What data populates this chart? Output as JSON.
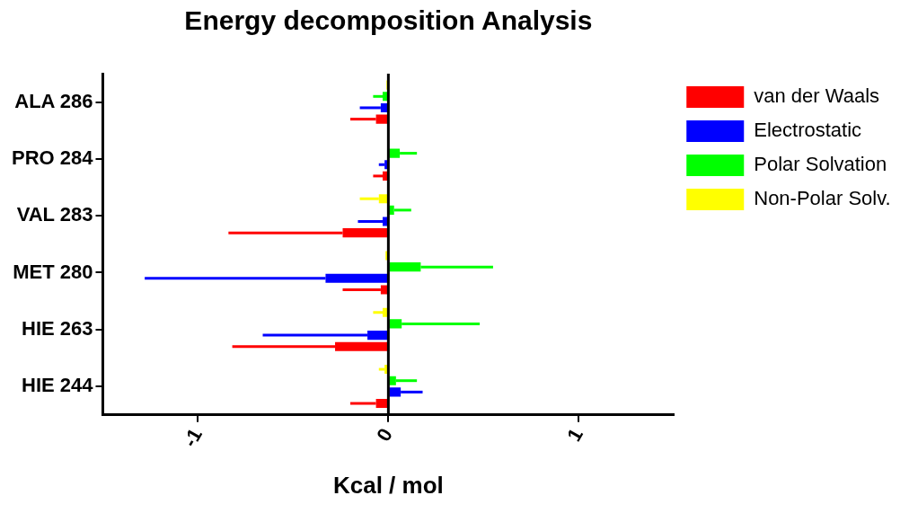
{
  "chart_data": {
    "type": "bar",
    "orientation": "horizontal",
    "title": "Energy decomposition Analysis",
    "xlabel": "Kcal / mol",
    "categories": [
      "ALA 286",
      "PRO 284",
      "VAL 283",
      "MET 280",
      "HIE 263",
      "HIE 244"
    ],
    "series": [
      {
        "name": "van der Waals",
        "color": "#ff0000",
        "values": [
          -0.065,
          -0.03,
          -0.24,
          -0.04,
          -0.28,
          -0.065
        ],
        "errors": [
          [
            -0.2,
            -0.065
          ],
          [
            -0.08,
            -0.03
          ],
          [
            -0.84,
            -0.24
          ],
          [
            -0.24,
            -0.04
          ],
          [
            -0.82,
            -0.28
          ],
          [
            -0.2,
            -0.065
          ]
        ]
      },
      {
        "name": "Electrostatic",
        "color": "#0000ff",
        "values": [
          -0.04,
          -0.02,
          -0.03,
          -0.33,
          -0.11,
          0.065
        ],
        "errors": [
          [
            -0.15,
            -0.04
          ],
          [
            -0.05,
            -0.02
          ],
          [
            -0.16,
            -0.03
          ],
          [
            -1.28,
            -0.33
          ],
          [
            -0.66,
            -0.11
          ],
          [
            0.065,
            0.18
          ]
        ]
      },
      {
        "name": "Polar Solvation",
        "color": "#00ff00",
        "values": [
          -0.03,
          0.06,
          0.03,
          0.17,
          0.07,
          0.04
        ],
        "errors": [
          [
            -0.08,
            -0.03
          ],
          [
            0.06,
            0.15
          ],
          [
            0.03,
            0.12
          ],
          [
            0.17,
            0.55
          ],
          [
            0.07,
            0.48
          ],
          [
            0.04,
            0.15
          ]
        ]
      },
      {
        "name": "Non-Polar Solv.",
        "color": "#ffff00",
        "values": [
          -0.01,
          null,
          -0.05,
          -0.015,
          -0.03,
          -0.02
        ],
        "errors": [
          null,
          null,
          [
            -0.15,
            -0.05
          ],
          null,
          [
            -0.08,
            -0.03
          ],
          [
            -0.05,
            -0.02
          ]
        ]
      }
    ],
    "xlim": [
      -1.5,
      1.5
    ],
    "xticks": [
      -1,
      0,
      1
    ],
    "ref_lines": [
      {
        "axis": "x",
        "value": 0
      }
    ],
    "grid": false,
    "legend": "top right"
  }
}
